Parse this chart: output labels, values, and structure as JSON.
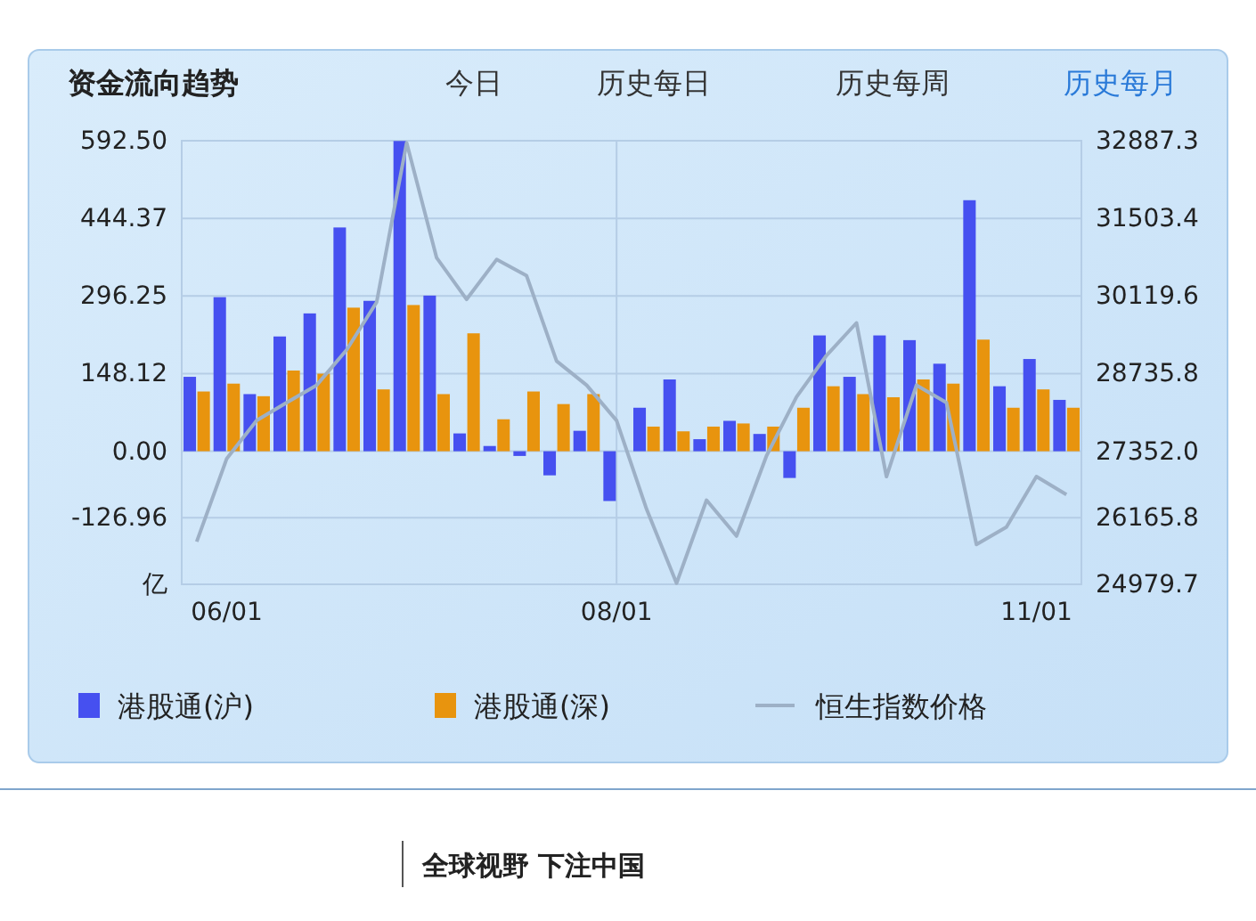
{
  "chart_data": {
    "type": "bar",
    "title": "资金流向趋势",
    "annotations": [
      "今日",
      "历史每日",
      "历史每周",
      "历史每月",
      "全球视野 下注中国"
    ],
    "categories": [
      null,
      "06/01",
      null,
      null,
      null,
      null,
      null,
      null,
      null,
      null,
      null,
      null,
      null,
      null,
      "08/01",
      null,
      null,
      null,
      null,
      null,
      null,
      null,
      null,
      null,
      null,
      null,
      null,
      null,
      "11/01",
      null
    ],
    "series": [
      {
        "name": "港股通(沪)",
        "color": "#4650f0",
        "values": [
          142,
          294,
          109,
          219,
          263,
          427,
          287,
          592,
          297,
          34,
          10,
          -9,
          -46,
          39,
          -95,
          83,
          137,
          23,
          58,
          33,
          -51,
          221,
          142,
          221,
          212,
          167,
          479,
          124,
          176,
          98
        ]
      },
      {
        "name": "港股通(深)",
        "color": "#e8940e",
        "values": [
          114,
          129,
          105,
          154,
          148,
          274,
          118,
          279,
          109,
          225,
          61,
          114,
          90,
          109,
          null,
          47,
          38,
          47,
          53,
          47,
          83,
          124,
          109,
          103,
          137,
          129,
          213,
          83,
          118,
          83
        ]
      },
      {
        "name": "恒生指数价格",
        "type": "line",
        "axis": "y2",
        "color": "#9db0c6",
        "values": [
          25740,
          27220,
          27900,
          28220,
          28530,
          29160,
          30010,
          32850,
          30800,
          30060,
          30770,
          30480,
          28960,
          28530,
          27900,
          26320,
          25000,
          26480,
          25840,
          27270,
          28320,
          29060,
          29640,
          26900,
          28530,
          28220,
          25690,
          26000,
          26900,
          26580
        ]
      }
    ],
    "ylim": [
      -253.92,
      592.5
    ],
    "yticks": [
      {
        "value": 592.5,
        "label": "592.50"
      },
      444.37,
      296.25,
      148.12,
      {
        "value": 0,
        "label": "0.00"
      },
      -126.96,
      {
        "value": -253.92,
        "label": "亿"
      }
    ],
    "y2lim": [
      24979.7,
      32887.3
    ],
    "y2ticks": [
      32887.3,
      31503.4,
      30119.6,
      28735.8,
      {
        "value": 27352,
        "label": "27352.0"
      },
      26165.8,
      24979.7
    ],
    "ref_lines": [
      {
        "axis": "x",
        "value": "08/01",
        "color": "#b5cde6"
      }
    ],
    "grid": "y",
    "legend": "bottom"
  }
}
